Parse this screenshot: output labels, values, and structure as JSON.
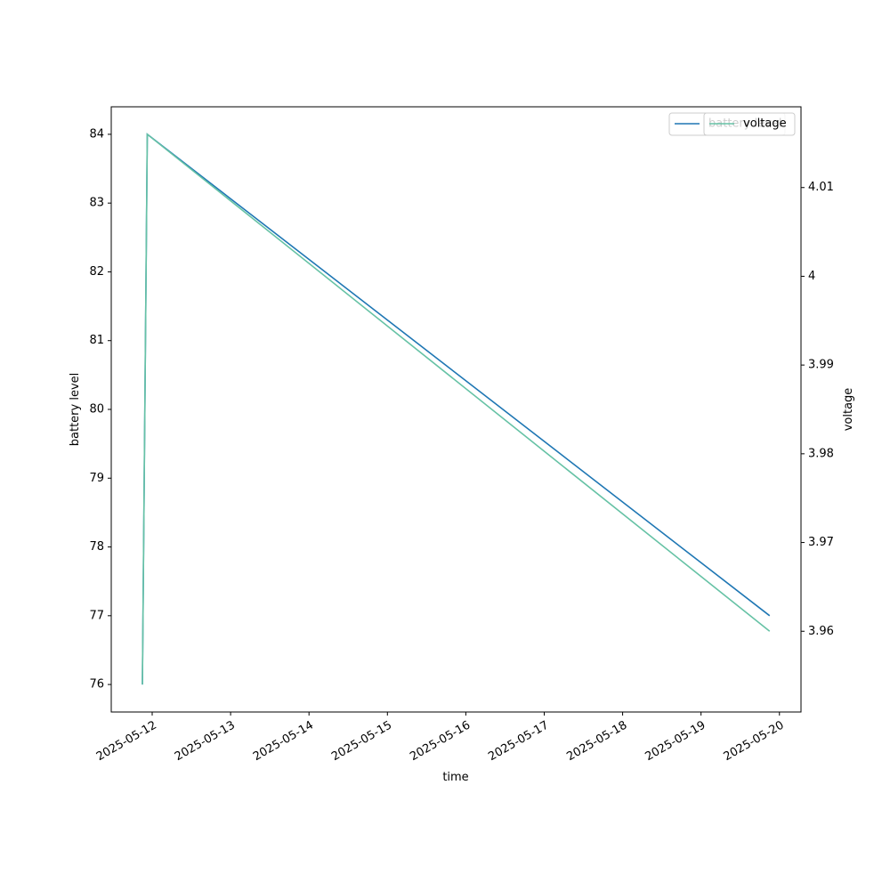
{
  "chart_data": {
    "type": "line",
    "x_label": "time",
    "y_label": "battery level",
    "y2_label": "voltage",
    "x": [
      "2025-05-11T21:00",
      "2025-05-11T22:30",
      "2025-05-19T21:00"
    ],
    "series": [
      {
        "name": "battery level",
        "color": "#1f77b4",
        "values": [
          76,
          84,
          77
        ]
      },
      {
        "name": "voltage",
        "color": "#66c2a5",
        "values": [
          3.954,
          4.016,
          3.96
        ],
        "axis": "y2"
      }
    ],
    "xlim": [
      "2025-05-11T11:28",
      "2025-05-20T06:36"
    ],
    "xticks": [
      "2025-05-12",
      "2025-05-13",
      "2025-05-14",
      "2025-05-15",
      "2025-05-16",
      "2025-05-17",
      "2025-05-18",
      "2025-05-19",
      "2025-05-20"
    ],
    "ylim": [
      75.6,
      84.4
    ],
    "yticks": [
      76,
      77,
      78,
      79,
      80,
      81,
      82,
      83,
      84
    ],
    "y2lim": [
      3.9509,
      4.0191
    ],
    "y2ticks": [
      3.96,
      3.97,
      3.98,
      3.99,
      4.0,
      4.01
    ],
    "grid": false
  }
}
